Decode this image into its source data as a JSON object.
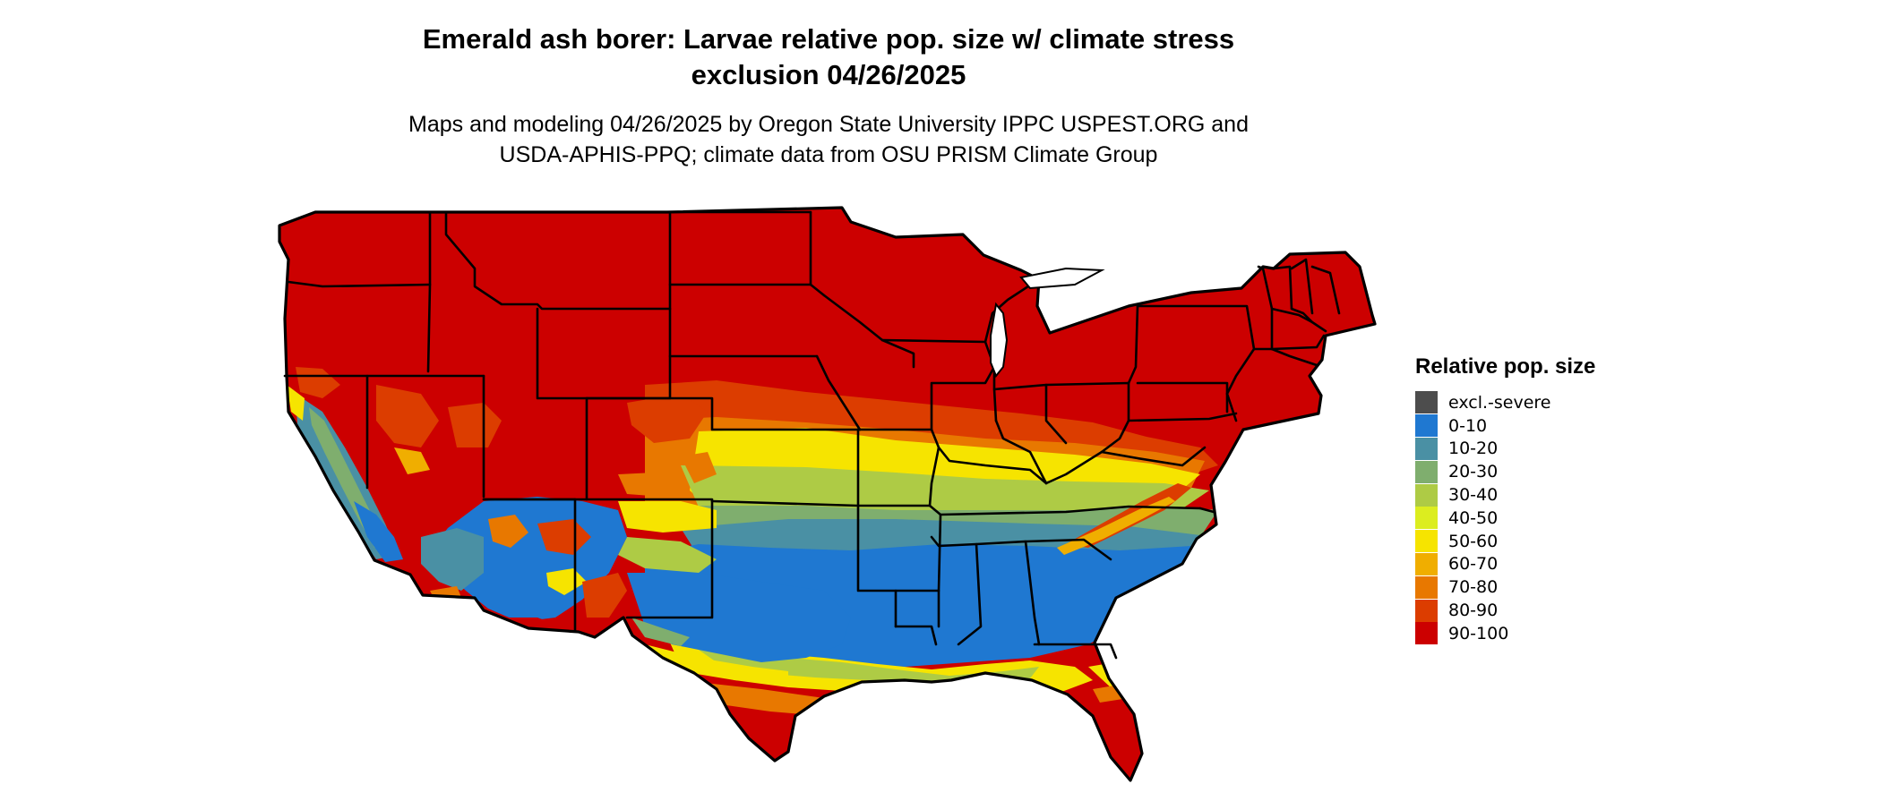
{
  "title": {
    "line1": "Emerald ash borer: Larvae relative pop. size w/ climate stress",
    "line2": "exclusion 04/26/2025"
  },
  "subtitle": {
    "line1": "Maps and modeling 04/26/2025 by Oregon State University IPPC USPEST.ORG and",
    "line2": "USDA-APHIS-PPQ; climate data from OSU PRISM Climate Group"
  },
  "legend": {
    "title": "Relative pop. size",
    "items": [
      {
        "label": "excl.-severe",
        "color": "#4d4d4d"
      },
      {
        "label": "0-10",
        "color": "#1f78d1"
      },
      {
        "label": "10-20",
        "color": "#4a90a4"
      },
      {
        "label": "20-30",
        "color": "#7fae6e"
      },
      {
        "label": "30-40",
        "color": "#aecb45"
      },
      {
        "label": "40-50",
        "color": "#dced1f"
      },
      {
        "label": "50-60",
        "color": "#f6e400"
      },
      {
        "label": "60-70",
        "color": "#f0ae00"
      },
      {
        "label": "70-80",
        "color": "#e87800"
      },
      {
        "label": "80-90",
        "color": "#dc3d00"
      },
      {
        "label": "90-100",
        "color": "#cc0000"
      }
    ]
  }
}
